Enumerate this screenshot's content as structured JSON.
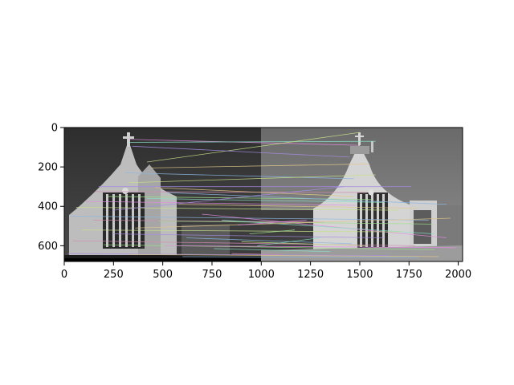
{
  "chart_data": {
    "type": "image",
    "title": "",
    "xlabel": "",
    "ylabel": "",
    "xlim": [
      0,
      2022
    ],
    "ylim": [
      680,
      0
    ],
    "x_ticks": [
      0,
      250,
      500,
      750,
      1000,
      1250,
      1500,
      1750,
      2000
    ],
    "y_ticks": [
      0,
      200,
      400,
      600
    ],
    "x_tick_labels": [
      "0",
      "250",
      "500",
      "750",
      "1000",
      "1250",
      "1500",
      "1750",
      "2000"
    ],
    "y_tick_labels": [
      "0",
      "200",
      "400",
      "600"
    ],
    "grid": false,
    "legend": "none",
    "image_content": {
      "left_image_extent": [
        0,
        1000
      ],
      "right_image_extent": [
        1000,
        2022
      ],
      "match_lines": [
        {
          "x1": 330,
          "y1": 60,
          "x2": 1490,
          "y2": 90
        },
        {
          "x1": 330,
          "y1": 75,
          "x2": 1580,
          "y2": 70
        },
        {
          "x1": 420,
          "y1": 175,
          "x2": 1500,
          "y2": 25
        },
        {
          "x1": 345,
          "y1": 95,
          "x2": 1450,
          "y2": 150
        },
        {
          "x1": 440,
          "y1": 205,
          "x2": 1545,
          "y2": 185
        },
        {
          "x1": 310,
          "y1": 230,
          "x2": 1470,
          "y2": 260
        },
        {
          "x1": 155,
          "y1": 325,
          "x2": 1535,
          "y2": 330
        },
        {
          "x1": 220,
          "y1": 350,
          "x2": 1560,
          "y2": 365
        },
        {
          "x1": 110,
          "y1": 375,
          "x2": 1480,
          "y2": 395
        },
        {
          "x1": 420,
          "y1": 360,
          "x2": 1620,
          "y2": 380
        },
        {
          "x1": 60,
          "y1": 405,
          "x2": 1700,
          "y2": 420
        },
        {
          "x1": 250,
          "y1": 420,
          "x2": 1420,
          "y2": 300
        },
        {
          "x1": 580,
          "y1": 390,
          "x2": 1790,
          "y2": 410
        },
        {
          "x1": 30,
          "y1": 450,
          "x2": 1850,
          "y2": 470
        },
        {
          "x1": 150,
          "y1": 470,
          "x2": 1320,
          "y2": 480
        },
        {
          "x1": 480,
          "y1": 475,
          "x2": 1870,
          "y2": 490
        },
        {
          "x1": 700,
          "y1": 440,
          "x2": 1940,
          "y2": 560
        },
        {
          "x1": 800,
          "y1": 470,
          "x2": 1880,
          "y2": 540
        },
        {
          "x1": 90,
          "y1": 520,
          "x2": 1710,
          "y2": 530
        },
        {
          "x1": 250,
          "y1": 540,
          "x2": 1620,
          "y2": 560
        },
        {
          "x1": 360,
          "y1": 510,
          "x2": 1960,
          "y2": 460
        },
        {
          "x1": 620,
          "y1": 560,
          "x2": 1460,
          "y2": 590
        },
        {
          "x1": 40,
          "y1": 575,
          "x2": 1780,
          "y2": 600
        },
        {
          "x1": 200,
          "y1": 595,
          "x2": 1880,
          "y2": 620
        },
        {
          "x1": 510,
          "y1": 600,
          "x2": 1990,
          "y2": 610
        },
        {
          "x1": 760,
          "y1": 615,
          "x2": 1350,
          "y2": 630
        },
        {
          "x1": 900,
          "y1": 580,
          "x2": 1530,
          "y2": 600
        },
        {
          "x1": 20,
          "y1": 640,
          "x2": 1650,
          "y2": 650
        },
        {
          "x1": 330,
          "y1": 645,
          "x2": 1900,
          "y2": 655
        },
        {
          "x1": 600,
          "y1": 655,
          "x2": 1800,
          "y2": 660
        },
        {
          "x1": 850,
          "y1": 640,
          "x2": 1100,
          "y2": 645
        },
        {
          "x1": 940,
          "y1": 540,
          "x2": 1170,
          "y2": 520
        },
        {
          "x1": 880,
          "y1": 495,
          "x2": 1230,
          "y2": 470
        },
        {
          "x1": 980,
          "y1": 600,
          "x2": 1300,
          "y2": 560
        },
        {
          "x1": 330,
          "y1": 280,
          "x2": 1580,
          "y2": 240
        },
        {
          "x1": 175,
          "y1": 300,
          "x2": 1760,
          "y2": 300
        },
        {
          "x1": 460,
          "y1": 305,
          "x2": 1470,
          "y2": 350
        },
        {
          "x1": 520,
          "y1": 330,
          "x2": 1940,
          "y2": 390
        }
      ]
    }
  }
}
